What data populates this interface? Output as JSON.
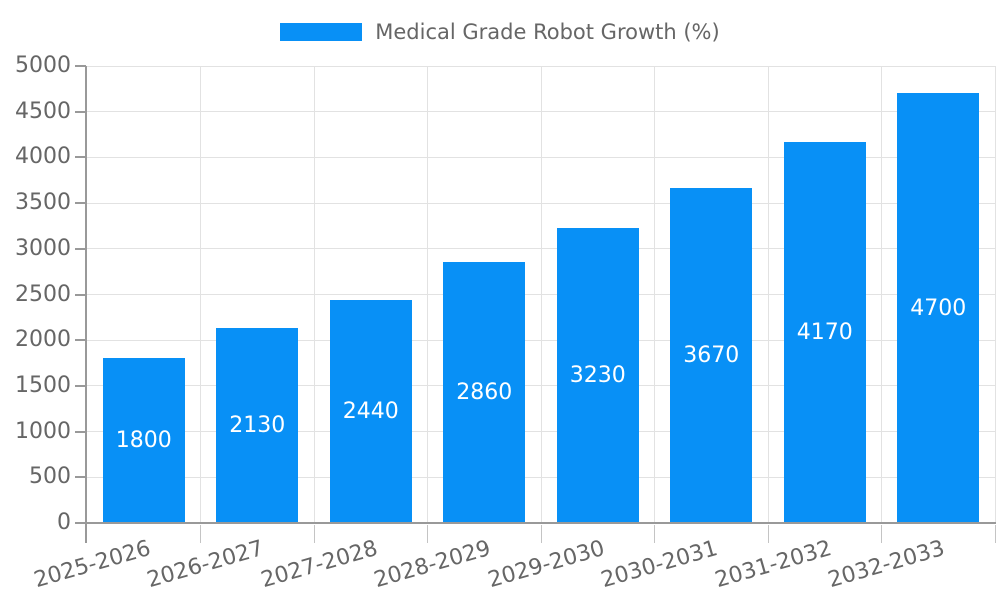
{
  "chart_data": {
    "type": "bar",
    "title": "Medical Grade Robot Growth (%)",
    "categories": [
      "2025-2026",
      "2026-2027",
      "2027-2028",
      "2028-2029",
      "2029-2030",
      "2030-2031",
      "2031-2032",
      "2032-2033"
    ],
    "values": [
      1800,
      2130,
      2440,
      2860,
      3230,
      3670,
      4170,
      4700
    ],
    "value_labels": [
      "1800",
      "2130",
      "2440",
      "2860",
      "3230",
      "3670",
      "4170",
      "4700"
    ],
    "xlabel": "",
    "ylabel": "",
    "ylim": [
      0,
      5000
    ],
    "ytick_step": 500,
    "ytick_labels": [
      "0",
      "500",
      "1000",
      "1500",
      "2000",
      "2500",
      "3000",
      "3500",
      "4000",
      "4500",
      "5000"
    ],
    "grid": "both",
    "legend_position": "top-center",
    "colors": {
      "bar": "#0890f6",
      "axis": "#999999",
      "grid": "#e2e2e2",
      "text": "#666666",
      "value_label": "#ffffff",
      "background": "#ffffff"
    }
  }
}
